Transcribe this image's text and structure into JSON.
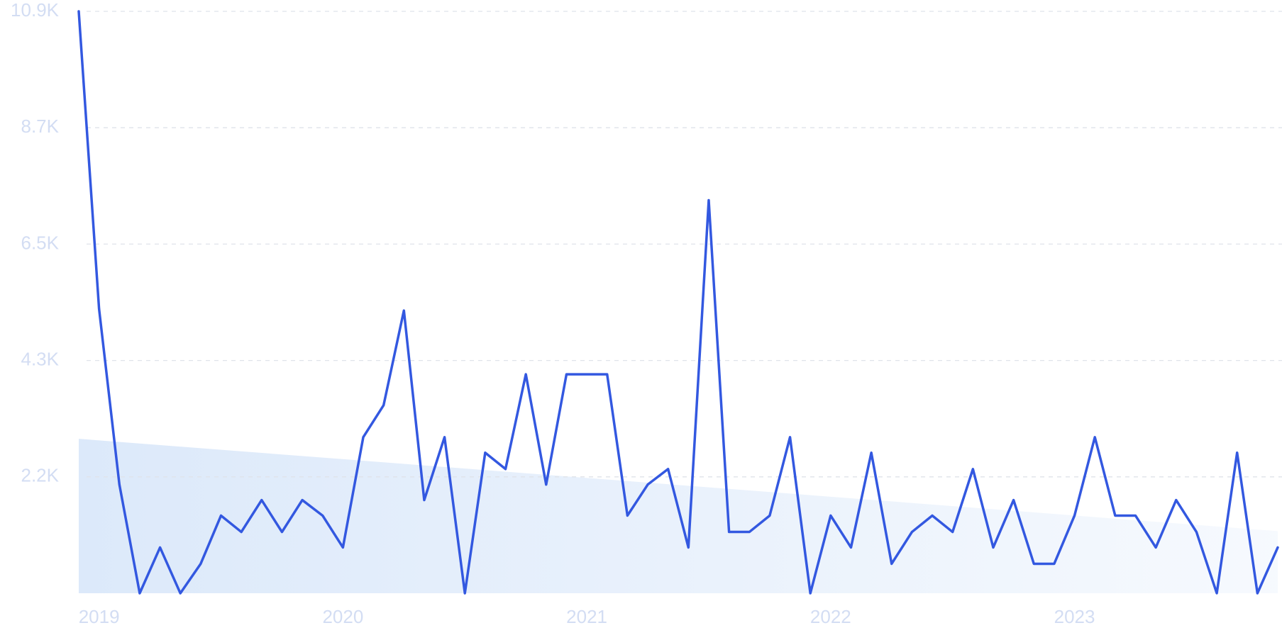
{
  "chart_data": {
    "type": "line",
    "categories": [
      null,
      "2019",
      null,
      null,
      null,
      null,
      null,
      null,
      null,
      null,
      null,
      null,
      null,
      "2020",
      null,
      null,
      null,
      null,
      null,
      null,
      null,
      null,
      null,
      null,
      null,
      "2021",
      null,
      null,
      null,
      null,
      null,
      null,
      null,
      null,
      null,
      null,
      null,
      "2022",
      null,
      null,
      null,
      null,
      null,
      null,
      null,
      null,
      null,
      null,
      null,
      "2023",
      null,
      null,
      null,
      null,
      null,
      null,
      null,
      null,
      null,
      null
    ],
    "series": [
      {
        "color": "#3358e0",
        "values": [
          10875,
          5314,
          2031,
          0,
          855,
          0,
          550,
          1451,
          1145,
          1741,
          1145,
          1741,
          1451,
          855,
          2917,
          3512,
          5283,
          1741,
          2917,
          0,
          2626,
          2321,
          4092,
          2031,
          4092,
          4092,
          4092,
          1451,
          2031,
          2321,
          855,
          7345,
          1145,
          1145,
          1451,
          2917,
          0,
          1451,
          855,
          2626,
          550,
          1145,
          1451,
          1145,
          2321,
          855,
          1741,
          550,
          550,
          1451,
          2917,
          1451,
          1451,
          855,
          1741,
          1145,
          0,
          2626,
          0,
          855
        ]
      }
    ],
    "trend": {
      "color": "#dce9fa",
      "values": [
        2886,
        1160
      ]
    },
    "ylim": [
      0,
      10875
    ],
    "yticks": [
      {
        "value": 2175,
        "label": "2.2K"
      },
      {
        "value": 4350,
        "label": "4.3K"
      },
      {
        "value": 6525,
        "label": "6.5K"
      },
      {
        "value": 8700,
        "label": "8.7K"
      },
      {
        "value": 10875,
        "label": "10.9K"
      }
    ],
    "grid": true
  }
}
